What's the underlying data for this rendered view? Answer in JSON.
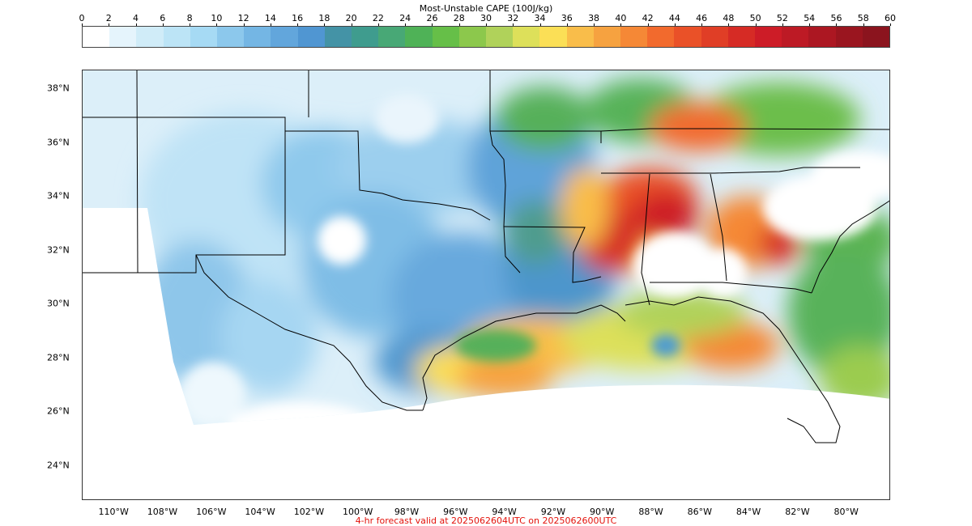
{
  "colorbar": {
    "title": "Most-Unstable CAPE (100J/kg)",
    "ticks": [
      "0",
      "2",
      "4",
      "6",
      "8",
      "10",
      "12",
      "14",
      "16",
      "18",
      "20",
      "22",
      "24",
      "26",
      "28",
      "30",
      "32",
      "34",
      "36",
      "38",
      "40",
      "42",
      "44",
      "46",
      "48",
      "50",
      "52",
      "54",
      "56",
      "58",
      "60"
    ],
    "colors": [
      "#ffffff",
      "#e5f4fc",
      "#d0ecf8",
      "#bce4f6",
      "#a6daf4",
      "#8cc8ec",
      "#74b6e4",
      "#62a6dc",
      "#5096d2",
      "#4493a6",
      "#3f9c8e",
      "#48a876",
      "#4fb257",
      "#66bf48",
      "#8cc84c",
      "#b0d25a",
      "#dde05a",
      "#fbdf56",
      "#f9bd4a",
      "#f6a240",
      "#f58836",
      "#f26a2d",
      "#ea5128",
      "#e03e26",
      "#d62b25",
      "#cd1c27",
      "#bd1a25",
      "#ac1722",
      "#9a151f",
      "#8b141e"
    ]
  },
  "map": {
    "lat_labels": [
      {
        "text": "38°N",
        "lat": 38
      },
      {
        "text": "36°N",
        "lat": 36
      },
      {
        "text": "34°N",
        "lat": 34
      },
      {
        "text": "32°N",
        "lat": 32
      },
      {
        "text": "30°N",
        "lat": 30
      },
      {
        "text": "28°N",
        "lat": 28
      },
      {
        "text": "26°N",
        "lat": 26
      },
      {
        "text": "24°N",
        "lat": 24
      }
    ],
    "lon_labels": [
      {
        "text": "110°W",
        "lon": -110
      },
      {
        "text": "108°W",
        "lon": -108
      },
      {
        "text": "106°W",
        "lon": -106
      },
      {
        "text": "104°W",
        "lon": -104
      },
      {
        "text": "102°W",
        "lon": -102
      },
      {
        "text": "100°W",
        "lon": -100
      },
      {
        "text": "98°W",
        "lon": -98
      },
      {
        "text": "96°W",
        "lon": -96
      },
      {
        "text": "94°W",
        "lon": -94
      },
      {
        "text": "92°W",
        "lon": -92
      },
      {
        "text": "90°W",
        "lon": -90
      },
      {
        "text": "88°W",
        "lon": -88
      },
      {
        "text": "86°W",
        "lon": -86
      },
      {
        "text": "84°W",
        "lon": -84
      },
      {
        "text": "82°W",
        "lon": -82
      },
      {
        "text": "80°W",
        "lon": -80
      }
    ],
    "lon_range": [
      -111.3,
      -78.2
    ],
    "lat_range": [
      22.7,
      38.7
    ]
  },
  "caption": "4-hr forecast valid at 2025062604UTC on 2025062600UTC",
  "caption_color": "#e3120b"
}
